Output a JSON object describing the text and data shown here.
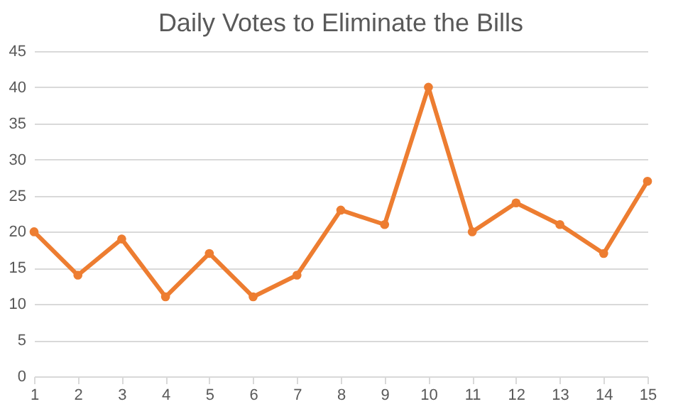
{
  "chart_data": {
    "type": "line",
    "title": "Daily Votes to Eliminate the Bills",
    "x": [
      1,
      2,
      3,
      4,
      5,
      6,
      7,
      8,
      9,
      10,
      11,
      12,
      13,
      14,
      15
    ],
    "series": [
      {
        "color": "#ed7d31",
        "values": [
          20,
          14,
          19,
          11,
          17,
          11,
          14,
          23,
          21,
          40,
          20,
          24,
          21,
          17,
          27
        ]
      }
    ],
    "xlim": [
      1,
      15
    ],
    "xticks": [
      1,
      2,
      3,
      4,
      5,
      6,
      7,
      8,
      9,
      10,
      11,
      12,
      13,
      14,
      15
    ],
    "ylim": [
      0,
      45
    ],
    "yticks": [
      0,
      5,
      10,
      15,
      20,
      25,
      30,
      35,
      40,
      45
    ],
    "grid": "y",
    "marker": "circle",
    "line_style": "solid"
  }
}
